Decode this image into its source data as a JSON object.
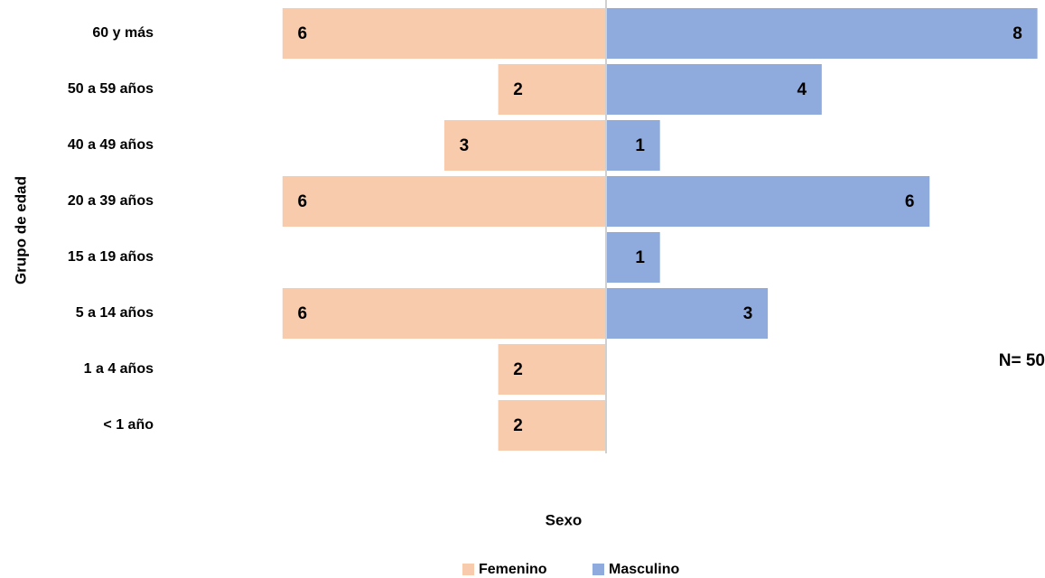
{
  "chart_data": {
    "type": "pyramid",
    "categories": [
      "60 y más",
      "50 a 59 años",
      "40 a 49 años",
      "20 a 39 años",
      "15 a 19 años",
      "5 a 14 años",
      "1 a 4 años",
      "< 1 año"
    ],
    "series": [
      {
        "name": "Femenino",
        "color": "#f8cbad",
        "values": [
          6,
          2,
          3,
          6,
          null,
          6,
          2,
          2
        ]
      },
      {
        "name": "Masculino",
        "color": "#8faadc",
        "values": [
          8,
          4,
          1,
          6,
          1,
          3,
          null,
          null
        ]
      }
    ],
    "y_label": "Grupo de edad",
    "x_label": "Sexo",
    "annotation": "N= 50"
  }
}
